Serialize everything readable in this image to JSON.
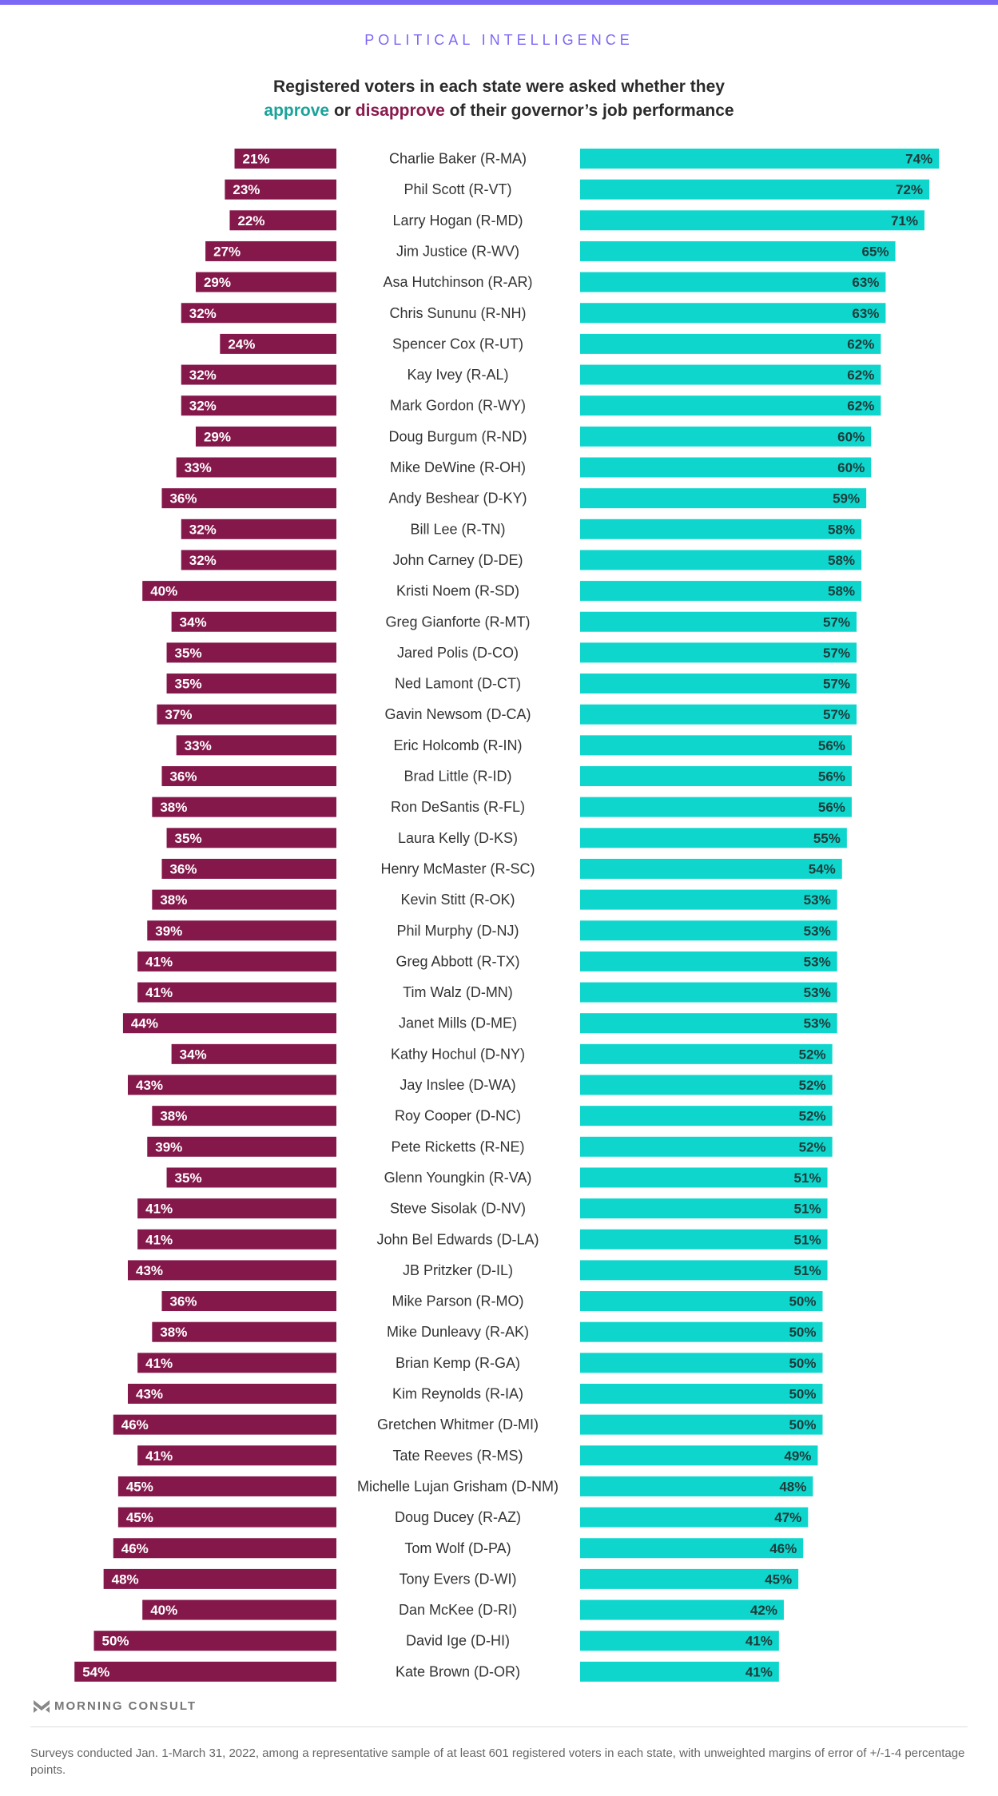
{
  "header": {
    "kicker": "POLITICAL INTELLIGENCE",
    "headline_line1": "Registered voters in each state were asked whether they",
    "headline_approve": "approve",
    "headline_or": " or ",
    "headline_disapprove": "disapprove",
    "headline_rest": " of their governor’s job performance"
  },
  "colors": {
    "accent": "#7b68f5",
    "approve": "#0fd6cc",
    "disapprove": "#84184b"
  },
  "footer": {
    "logo_text": "MORNING CONSULT",
    "logo_icon": "morning-consult-chevron-icon",
    "note": "Surveys conducted Jan. 1-March 31, 2022, among a representative sample of at least 601 registered voters in each state, with unweighted margins of error of +/-1-4 percentage points."
  },
  "chart_data": {
    "type": "bar",
    "orientation": "horizontal-diverging",
    "title": "Registered voters in each state were asked whether they approve or disapprove of their governor’s job performance",
    "xlabel": "",
    "ylabel": "",
    "unit": "%",
    "grid": false,
    "legend": "inline in title",
    "categories": [
      "Charlie Baker (R-MA)",
      "Phil Scott (R-VT)",
      "Larry Hogan (R-MD)",
      "Jim Justice (R-WV)",
      "Asa Hutchinson (R-AR)",
      "Chris Sununu (R-NH)",
      "Spencer Cox (R-UT)",
      "Kay Ivey (R-AL)",
      "Mark Gordon (R-WY)",
      "Doug Burgum (R-ND)",
      "Mike DeWine (R-OH)",
      "Andy Beshear (D-KY)",
      "Bill Lee (R-TN)",
      "John Carney (D-DE)",
      "Kristi Noem (R-SD)",
      "Greg Gianforte (R-MT)",
      "Jared Polis (D-CO)",
      "Ned Lamont (D-CT)",
      "Gavin Newsom (D-CA)",
      "Eric Holcomb (R-IN)",
      "Brad Little (R-ID)",
      "Ron DeSantis (R-FL)",
      "Laura Kelly (D-KS)",
      "Henry McMaster (R-SC)",
      "Kevin Stitt (R-OK)",
      "Phil Murphy (D-NJ)",
      "Greg Abbott (R-TX)",
      "Tim Walz (D-MN)",
      "Janet Mills (D-ME)",
      "Kathy Hochul (D-NY)",
      "Jay Inslee (D-WA)",
      "Roy Cooper (D-NC)",
      "Pete Ricketts (R-NE)",
      "Glenn Youngkin (R-VA)",
      "Steve Sisolak (D-NV)",
      "John Bel Edwards (D-LA)",
      "JB Pritzker (D-IL)",
      "Mike Parson (R-MO)",
      "Mike Dunleavy (R-AK)",
      "Brian Kemp (R-GA)",
      "Kim Reynolds (R-IA)",
      "Gretchen Whitmer (D-MI)",
      "Tate Reeves (R-MS)",
      "Michelle Lujan Grisham (D-NM)",
      "Doug Ducey (R-AZ)",
      "Tom Wolf (D-PA)",
      "Tony Evers (D-WI)",
      "Dan McKee (D-RI)",
      "David Ige (D-HI)",
      "Kate Brown (D-OR)"
    ],
    "series": [
      {
        "name": "disapprove",
        "values": [
          21,
          23,
          22,
          27,
          29,
          32,
          24,
          32,
          32,
          29,
          33,
          36,
          32,
          32,
          40,
          34,
          35,
          35,
          37,
          33,
          36,
          38,
          35,
          36,
          38,
          39,
          41,
          41,
          44,
          34,
          43,
          38,
          39,
          35,
          41,
          41,
          43,
          36,
          38,
          41,
          43,
          46,
          41,
          45,
          45,
          46,
          48,
          40,
          50,
          54
        ]
      },
      {
        "name": "approve",
        "values": [
          74,
          72,
          71,
          65,
          63,
          63,
          62,
          62,
          62,
          60,
          60,
          59,
          58,
          58,
          58,
          57,
          57,
          57,
          57,
          56,
          56,
          56,
          55,
          54,
          53,
          53,
          53,
          53,
          53,
          52,
          52,
          52,
          52,
          51,
          51,
          51,
          51,
          50,
          50,
          50,
          50,
          50,
          49,
          48,
          47,
          46,
          45,
          42,
          41,
          41
        ]
      }
    ]
  }
}
